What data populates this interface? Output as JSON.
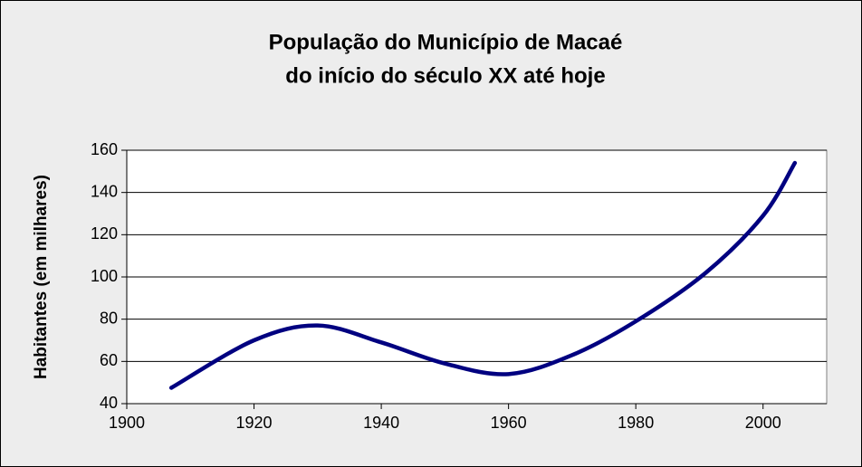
{
  "chart_data": {
    "type": "line",
    "title": [
      "População do Município de Macaé",
      "do início do século XX até hoje"
    ],
    "y_label": "Habitantes (em milhares)",
    "series": [
      {
        "name": "População",
        "color": "#000080",
        "x": [
          1907,
          1920,
          1930,
          1940,
          1950,
          1960,
          1970,
          1980,
          1991,
          2000,
          2005
        ],
        "values": [
          47.5,
          70,
          77,
          69,
          59,
          54,
          63,
          79,
          102,
          129,
          154
        ]
      }
    ],
    "xlim": [
      1900,
      2010
    ],
    "xticks": [
      1900,
      1920,
      1940,
      1960,
      1980,
      2000
    ],
    "ylim": [
      40,
      160
    ],
    "yticks": [
      40,
      60,
      80,
      100,
      120,
      140,
      160
    ],
    "grid": true,
    "smooth": true
  }
}
